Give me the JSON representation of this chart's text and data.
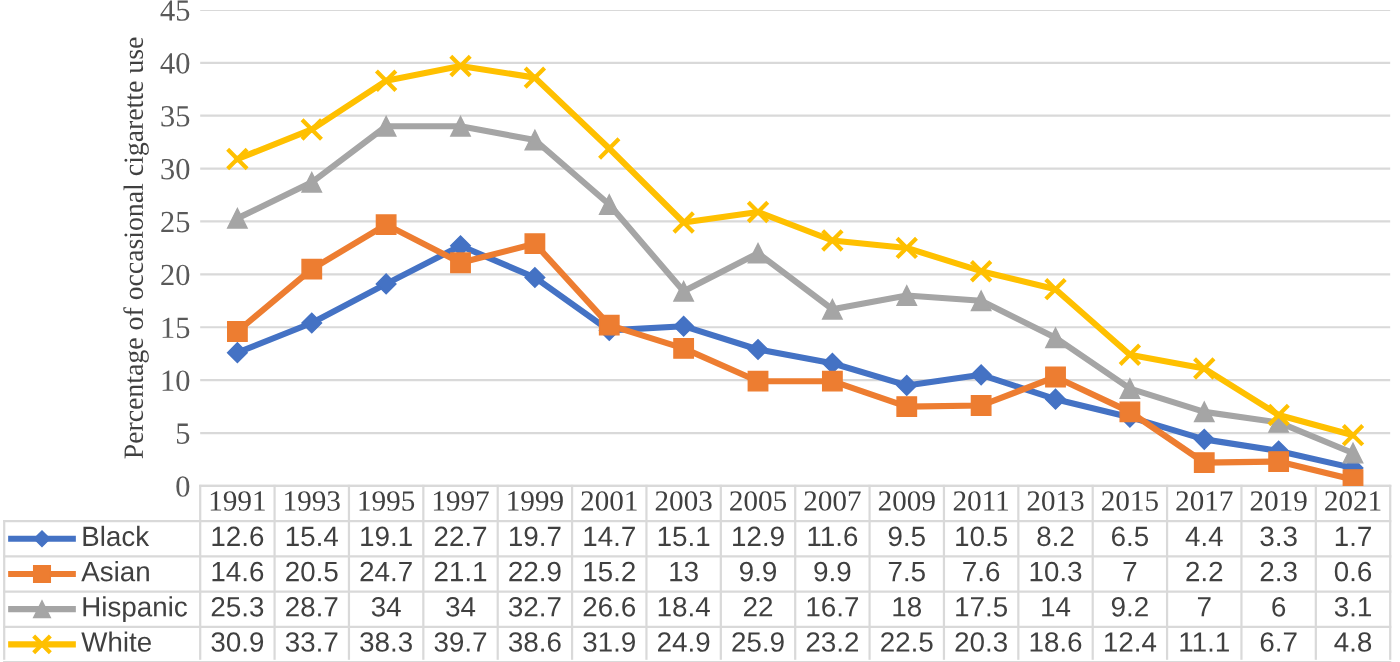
{
  "chart_data": {
    "type": "line",
    "ylabel": "Percentage of occasional cigarette use",
    "categories": [
      "1991",
      "1993",
      "1995",
      "1997",
      "1999",
      "2001",
      "2003",
      "2005",
      "2007",
      "2009",
      "2011",
      "2013",
      "2015",
      "2017",
      "2019",
      "2021"
    ],
    "series": [
      {
        "name": "Black",
        "color": "#4472c4",
        "marker": "diamond",
        "values": [
          12.6,
          15.4,
          19.1,
          22.7,
          19.7,
          14.7,
          15.1,
          12.9,
          11.6,
          9.5,
          10.5,
          8.2,
          6.5,
          4.4,
          3.3,
          1.7
        ]
      },
      {
        "name": "Asian",
        "color": "#ed7d31",
        "marker": "square",
        "values": [
          14.6,
          20.5,
          24.7,
          21.1,
          22.9,
          15.2,
          13,
          9.9,
          9.9,
          7.5,
          7.6,
          10.3,
          7,
          2.2,
          2.3,
          0.6
        ]
      },
      {
        "name": "Hispanic",
        "color": "#a5a5a5",
        "marker": "triangle",
        "values": [
          25.3,
          28.7,
          34,
          34,
          32.7,
          26.6,
          18.4,
          22,
          16.7,
          18,
          17.5,
          14,
          9.2,
          7,
          6,
          3.1
        ]
      },
      {
        "name": "White",
        "color": "#ffc000",
        "marker": "cross",
        "values": [
          30.9,
          33.7,
          38.3,
          39.7,
          38.6,
          31.9,
          24.9,
          25.9,
          23.2,
          22.5,
          20.3,
          18.6,
          12.4,
          11.1,
          6.7,
          4.8
        ]
      }
    ],
    "ylim": [
      0,
      45
    ],
    "yticks": [
      0,
      5,
      10,
      15,
      20,
      25,
      30,
      35,
      40,
      45
    ],
    "grid": "y",
    "legend": "bottom",
    "data_labels": true
  }
}
